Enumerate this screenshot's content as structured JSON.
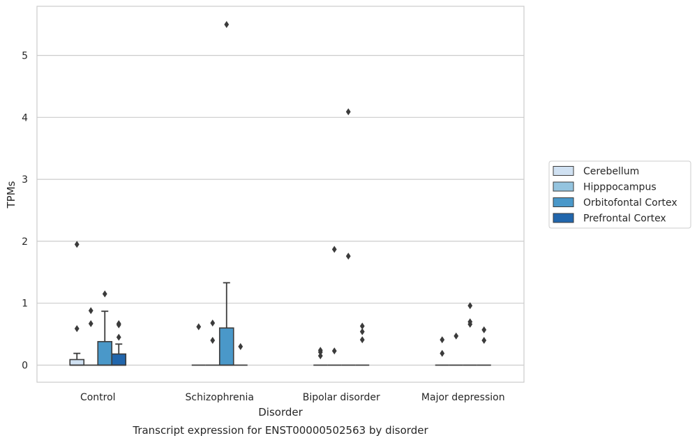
{
  "chart_data": {
    "type": "box",
    "title": "",
    "caption": "Transcript expression for ENST00000502563 by disorder",
    "xlabel": "Disorder",
    "ylabel": "TPMs",
    "ylim": [
      -0.27,
      5.85
    ],
    "yticks": [
      0,
      1,
      2,
      3,
      4,
      5
    ],
    "grid": "horizontal",
    "legend_position": "right",
    "categories": [
      "Control",
      "Schizophrenia",
      "Bipolar disorder",
      "Major depression"
    ],
    "series": [
      {
        "name": "Cerebellum",
        "color": "#d0e1f2",
        "boxes": [
          {
            "min": 0,
            "q1": 0,
            "median": 0,
            "q3": 0.09,
            "max": 0.19,
            "outliers": [
              1.95,
              0.59
            ]
          },
          {
            "min": 0,
            "q1": 0,
            "median": 0,
            "q3": 0,
            "max": 0,
            "outliers": [
              0.62
            ]
          },
          {
            "min": 0,
            "q1": 0,
            "median": 0,
            "q3": 0,
            "max": 0,
            "outliers": [
              0.24,
              0.21,
              0.15
            ]
          },
          {
            "min": 0,
            "q1": 0,
            "median": 0,
            "q3": 0,
            "max": 0,
            "outliers": [
              0.41,
              0.19
            ]
          }
        ]
      },
      {
        "name": "Hipppocampus",
        "color": "#94c4df",
        "boxes": [
          {
            "min": 0,
            "q1": 0,
            "median": 0,
            "q3": 0,
            "max": 0,
            "outliers": [
              0.88,
              0.67
            ]
          },
          {
            "min": 0,
            "q1": 0,
            "median": 0,
            "q3": 0,
            "max": 0,
            "outliers": [
              0.68,
              0.4
            ]
          },
          {
            "min": 0,
            "q1": 0,
            "median": 0,
            "q3": 0,
            "max": 0,
            "outliers": [
              1.87,
              0.23
            ]
          },
          {
            "min": 0,
            "q1": 0,
            "median": 0,
            "q3": 0,
            "max": 0,
            "outliers": [
              0.47
            ]
          }
        ]
      },
      {
        "name": "Orbitofontal Cortex",
        "color": "#4a98c9",
        "boxes": [
          {
            "min": 0,
            "q1": 0,
            "median": 0,
            "q3": 0.38,
            "max": 0.87,
            "outliers": [
              1.15
            ]
          },
          {
            "min": 0,
            "q1": 0,
            "median": 0,
            "q3": 0.6,
            "max": 1.33,
            "outliers": [
              5.5
            ]
          },
          {
            "min": 0,
            "q1": 0,
            "median": 0,
            "q3": 0,
            "max": 0,
            "outliers": [
              4.09,
              1.76
            ]
          },
          {
            "min": 0,
            "q1": 0,
            "median": 0,
            "q3": 0,
            "max": 0,
            "outliers": [
              0.96,
              0.7,
              0.66
            ]
          }
        ]
      },
      {
        "name": "Prefrontal Cortex",
        "color": "#2166ac",
        "boxes": [
          {
            "min": 0,
            "q1": 0,
            "median": 0,
            "q3": 0.18,
            "max": 0.34,
            "outliers": [
              0.67,
              0.65,
              0.45
            ]
          },
          {
            "min": 0,
            "q1": 0,
            "median": 0,
            "q3": 0,
            "max": 0,
            "outliers": [
              0.3
            ]
          },
          {
            "min": 0,
            "q1": 0,
            "median": 0,
            "q3": 0,
            "max": 0,
            "outliers": [
              0.63,
              0.54,
              0.41
            ]
          },
          {
            "min": 0,
            "q1": 0,
            "median": 0,
            "q3": 0,
            "max": 0,
            "outliers": [
              0.57,
              0.4
            ]
          }
        ]
      }
    ]
  }
}
